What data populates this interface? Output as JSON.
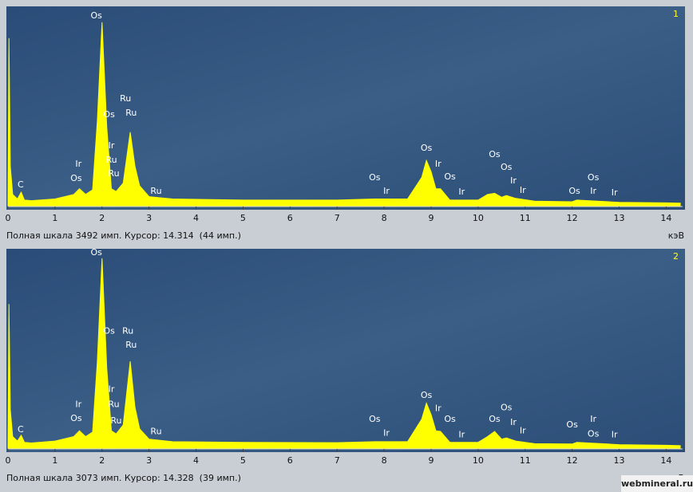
{
  "chart_data": [
    {
      "type": "area",
      "panel_label": "1",
      "status": "Полная шкала 3492 имп. Курсор: 14.314  (44 имп.)",
      "x_unit": "кэВ",
      "color": "#ffff00",
      "xlim": [
        0,
        14.35
      ],
      "ylim": [
        0,
        3492
      ],
      "xticks": [
        0,
        1,
        2,
        3,
        4,
        5,
        6,
        7,
        8,
        9,
        10,
        11,
        12,
        13,
        14
      ],
      "x": [
        0,
        0.02,
        0.05,
        0.1,
        0.2,
        0.28,
        0.35,
        0.5,
        1.0,
        1.4,
        1.52,
        1.65,
        1.8,
        1.9,
        2.0,
        2.1,
        2.2,
        2.3,
        2.45,
        2.6,
        2.7,
        2.8,
        3.0,
        3.5,
        5,
        7,
        7.8,
        8.5,
        8.8,
        8.9,
        9.0,
        9.1,
        9.2,
        9.4,
        10.0,
        10.2,
        10.35,
        10.5,
        10.6,
        10.8,
        11.2,
        12,
        12.1,
        13,
        14,
        14.3
      ],
      "values": [
        0,
        2960,
        700,
        200,
        120,
        240,
        100,
        90,
        120,
        200,
        300,
        200,
        280,
        1500,
        3240,
        1400,
        300,
        250,
        400,
        1300,
        700,
        350,
        160,
        120,
        100,
        100,
        120,
        120,
        500,
        800,
        600,
        300,
        300,
        100,
        100,
        200,
        220,
        150,
        180,
        130,
        80,
        70,
        100,
        60,
        50,
        45
      ],
      "annotations": [
        {
          "text": "C",
          "x": 0.27,
          "y": 366
        },
        {
          "text": "Os",
          "x": 1.88,
          "y": 3350
        },
        {
          "text": "Ir",
          "x": 1.5,
          "y": 732
        },
        {
          "text": "Os",
          "x": 1.45,
          "y": 479
        },
        {
          "text": "Ru",
          "x": 2.5,
          "y": 1887
        },
        {
          "text": "Ru",
          "x": 2.62,
          "y": 1633
        },
        {
          "text": "Os",
          "x": 2.15,
          "y": 1605
        },
        {
          "text": "Ir",
          "x": 2.2,
          "y": 1056
        },
        {
          "text": "Ru",
          "x": 2.2,
          "y": 803
        },
        {
          "text": "Ru",
          "x": 2.25,
          "y": 563
        },
        {
          "text": "Ru",
          "x": 3.15,
          "y": 253
        },
        {
          "text": "Os",
          "x": 7.8,
          "y": 493
        },
        {
          "text": "Ir",
          "x": 8.05,
          "y": 253
        },
        {
          "text": "Os",
          "x": 8.9,
          "y": 1014
        },
        {
          "text": "Ir",
          "x": 9.15,
          "y": 732
        },
        {
          "text": "Os",
          "x": 9.4,
          "y": 507
        },
        {
          "text": "Ir",
          "x": 9.65,
          "y": 239
        },
        {
          "text": "Os",
          "x": 10.35,
          "y": 901
        },
        {
          "text": "Os",
          "x": 10.6,
          "y": 676
        },
        {
          "text": "Ir",
          "x": 10.75,
          "y": 436
        },
        {
          "text": "Ir",
          "x": 10.95,
          "y": 267
        },
        {
          "text": "Os",
          "x": 12.05,
          "y": 253
        },
        {
          "text": "Os",
          "x": 12.45,
          "y": 493
        },
        {
          "text": "Ir",
          "x": 12.45,
          "y": 253
        },
        {
          "text": "Ir",
          "x": 12.9,
          "y": 225
        }
      ]
    },
    {
      "type": "area",
      "panel_label": "2",
      "status": "Полная шкала 3073 имп. Курсор: 14.328  (39 имп.)",
      "x_unit": "кэВ",
      "color": "#ffff00",
      "xlim": [
        0,
        14.35
      ],
      "ylim": [
        0,
        3073
      ],
      "xticks": [
        0,
        1,
        2,
        3,
        4,
        5,
        6,
        7,
        8,
        9,
        10,
        11,
        12,
        13,
        14
      ],
      "x": [
        0,
        0.02,
        0.05,
        0.1,
        0.2,
        0.28,
        0.35,
        0.5,
        1.0,
        1.4,
        1.52,
        1.65,
        1.8,
        1.9,
        2.0,
        2.1,
        2.2,
        2.3,
        2.45,
        2.6,
        2.7,
        2.8,
        3.0,
        3.5,
        5,
        7,
        7.8,
        8.5,
        8.8,
        8.9,
        9.0,
        9.1,
        9.2,
        9.4,
        10.0,
        10.2,
        10.35,
        10.5,
        10.6,
        10.8,
        11.2,
        12,
        12.1,
        13,
        14,
        14.3
      ],
      "values": [
        0,
        2240,
        600,
        180,
        110,
        200,
        90,
        80,
        110,
        180,
        270,
        180,
        250,
        1350,
        2950,
        1250,
        270,
        220,
        360,
        1350,
        640,
        300,
        140,
        100,
        90,
        85,
        100,
        100,
        450,
        700,
        520,
        270,
        260,
        90,
        90,
        180,
        260,
        140,
        160,
        110,
        70,
        65,
        90,
        55,
        45,
        39
      ],
      "annotations": [
        {
          "text": "C",
          "x": 0.27,
          "y": 282
        },
        {
          "text": "Os",
          "x": 1.88,
          "y": 3033
        },
        {
          "text": "Os",
          "x": 2.15,
          "y": 1818
        },
        {
          "text": "Ru",
          "x": 2.55,
          "y": 1818
        },
        {
          "text": "Ru",
          "x": 2.62,
          "y": 1600
        },
        {
          "text": "Ir",
          "x": 2.2,
          "y": 909
        },
        {
          "text": "Ir",
          "x": 1.5,
          "y": 678
        },
        {
          "text": "Os",
          "x": 1.45,
          "y": 461
        },
        {
          "text": "Ru",
          "x": 2.25,
          "y": 678
        },
        {
          "text": "Ru",
          "x": 2.3,
          "y": 422
        },
        {
          "text": "Ru",
          "x": 3.15,
          "y": 256
        },
        {
          "text": "Os",
          "x": 7.8,
          "y": 448
        },
        {
          "text": "Ir",
          "x": 8.05,
          "y": 230
        },
        {
          "text": "Os",
          "x": 8.9,
          "y": 819
        },
        {
          "text": "Ir",
          "x": 9.15,
          "y": 614
        },
        {
          "text": "Os",
          "x": 9.4,
          "y": 448
        },
        {
          "text": "Ir",
          "x": 9.65,
          "y": 205
        },
        {
          "text": "Os",
          "x": 10.35,
          "y": 448
        },
        {
          "text": "Os",
          "x": 10.6,
          "y": 627
        },
        {
          "text": "Ir",
          "x": 10.75,
          "y": 397
        },
        {
          "text": "Ir",
          "x": 10.95,
          "y": 269
        },
        {
          "text": "Os",
          "x": 12.0,
          "y": 358
        },
        {
          "text": "Ir",
          "x": 12.45,
          "y": 448
        },
        {
          "text": "Os",
          "x": 12.45,
          "y": 218
        },
        {
          "text": "Ir",
          "x": 12.9,
          "y": 205
        }
      ]
    }
  ],
  "watermark": "webmineral.ru"
}
